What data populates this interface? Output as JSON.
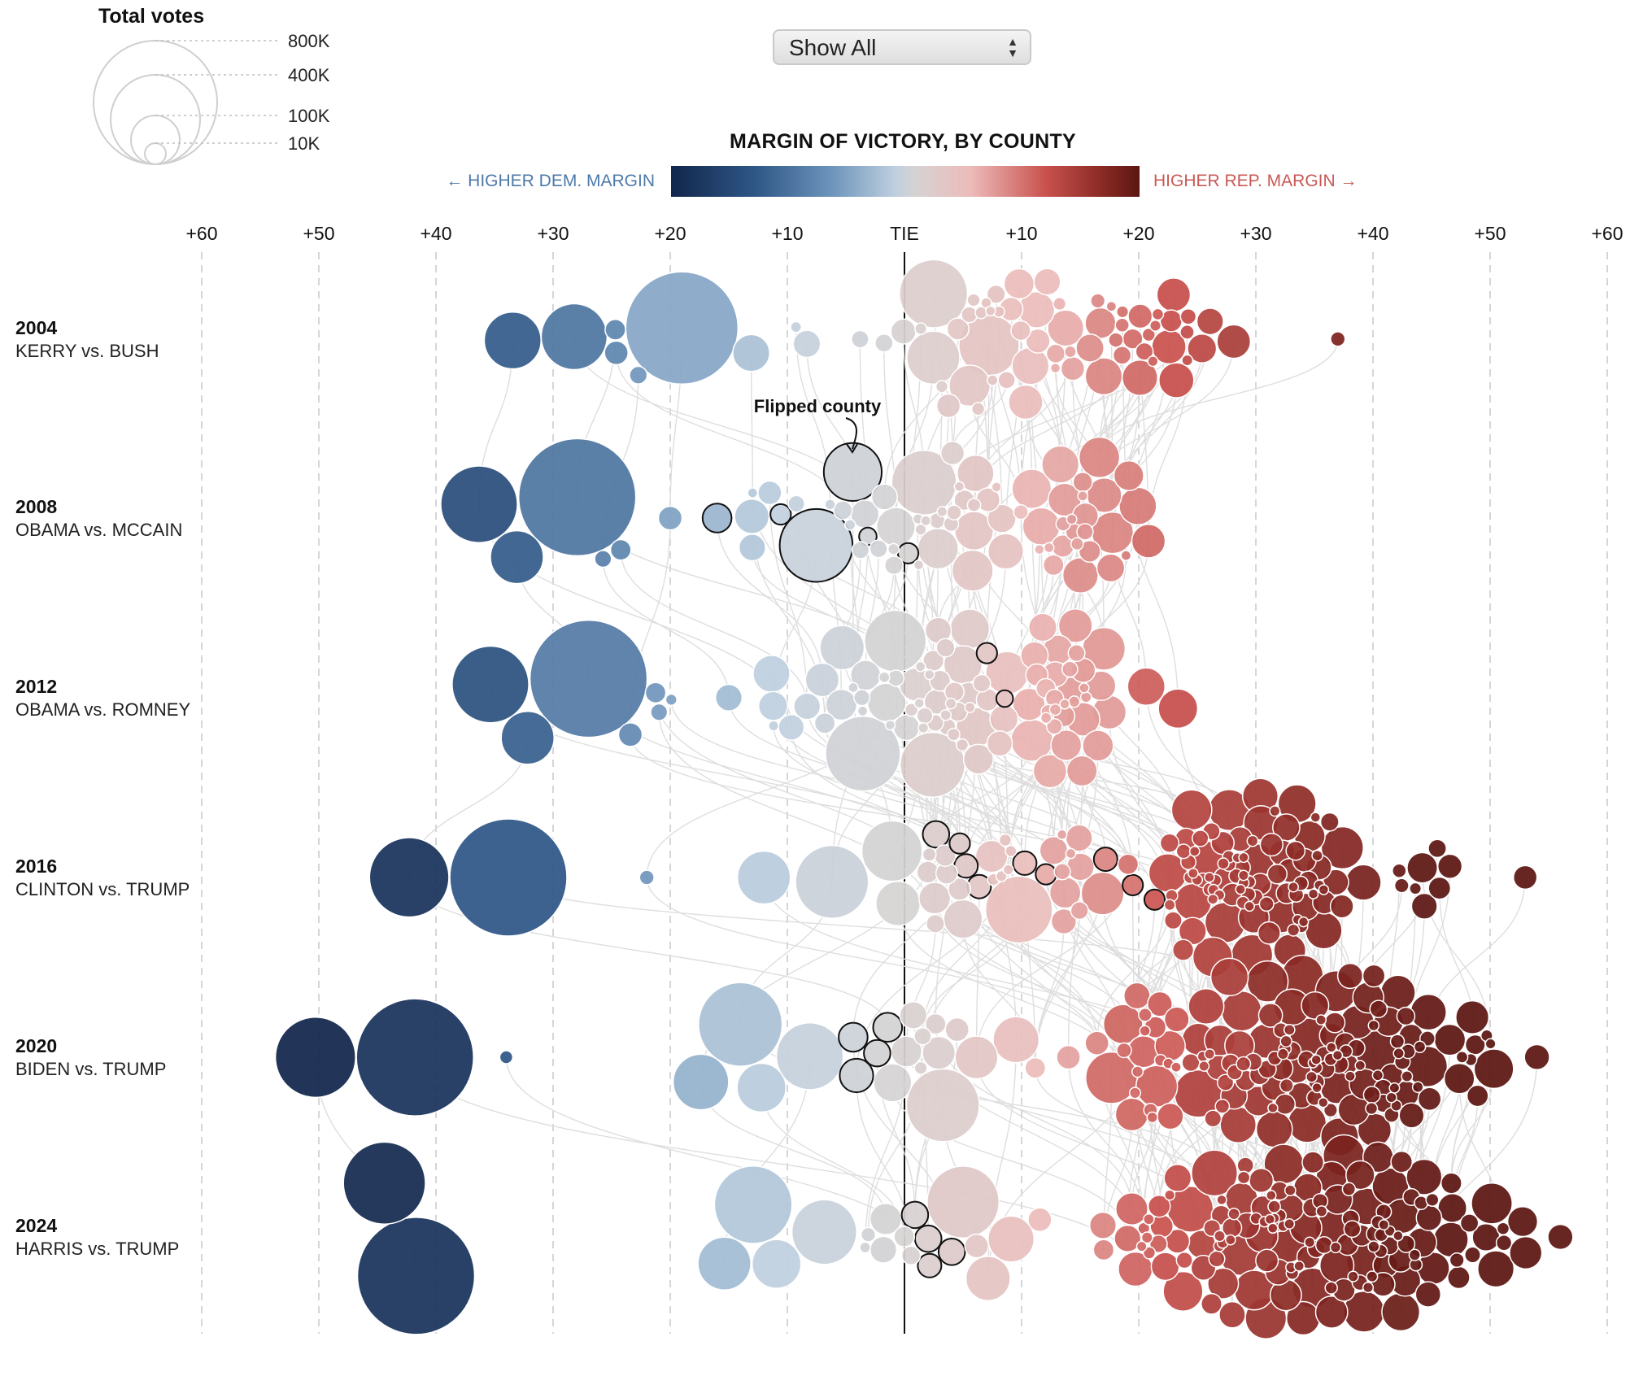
{
  "size_legend": {
    "title": "Total votes",
    "items": [
      {
        "label": "800K",
        "votes": 800000
      },
      {
        "label": "400K",
        "votes": 400000
      },
      {
        "label": "100K",
        "votes": 100000
      },
      {
        "label": "10K",
        "votes": 10000
      }
    ]
  },
  "filter": {
    "selected": "Show All"
  },
  "color_scale": {
    "title": "MARGIN OF VICTORY, BY COUNTY",
    "dem_label": "← HIGHER DEM. MARGIN",
    "rep_label": "HIGHER REP. MARGIN →",
    "colors": [
      "#11264b",
      "#2f5787",
      "#6c93ba",
      "#bfd0df",
      "#d6d3d3",
      "#ecbbb9",
      "#c9514d",
      "#8a2a25",
      "#5c1612"
    ]
  },
  "annotation": "Flipped county",
  "chart_data": {
    "type": "scatter",
    "title": "MARGIN OF VICTORY, BY COUNTY",
    "x_ticks": [
      "+60",
      "+50",
      "+40",
      "+30",
      "+20",
      "+10",
      "TIE",
      "+10",
      "+20",
      "+30",
      "+40",
      "+50",
      "+60"
    ],
    "xlim": [
      -60,
      60
    ],
    "x_unit": "margin points (negative = Democratic margin)",
    "rows": [
      {
        "year": "2004",
        "matchup": "KERRY vs. BUSH",
        "big": [
          [
            -33,
            230,
            0
          ],
          [
            -28,
            310,
            0
          ],
          [
            -19,
            900,
            0
          ],
          [
            3,
            330,
            0
          ],
          [
            7,
            260,
            0
          ],
          [
            3,
            200,
            0
          ],
          [
            6,
            120,
            0
          ]
        ],
        "med": [
          [
            -25,
            30,
            0
          ],
          [
            -25,
            40,
            0
          ],
          [
            -22,
            22,
            0
          ],
          [
            20,
            90,
            0
          ],
          [
            23,
            80,
            0
          ],
          [
            25,
            60,
            0
          ],
          [
            28,
            80,
            0
          ],
          [
            26,
            50,
            0
          ],
          [
            16,
            55,
            0
          ],
          [
            11,
            50,
            0
          ],
          [
            14,
            40,
            0
          ],
          [
            10,
            40,
            0
          ],
          [
            5,
            40,
            0
          ]
        ],
        "dist": [
          [
            -14,
            3,
            4
          ],
          [
            -6,
            12,
            9
          ],
          [
            1,
            14,
            15
          ],
          [
            16,
            24,
            21
          ],
          [
            32,
            8,
            2
          ]
        ],
        "outliers": [
          [
            37,
            15,
            0
          ]
        ]
      },
      {
        "year": "2008",
        "matchup": "OBAMA vs. MCCAIN",
        "big": [
          [
            -36,
            420,
            0
          ],
          [
            -28,
            1000,
            0
          ],
          [
            -33,
            200,
            0
          ],
          [
            -7,
            380,
            1
          ],
          [
            -4,
            240,
            1
          ],
          [
            2,
            300,
            0
          ],
          [
            6,
            120,
            0
          ],
          [
            12,
            110,
            0
          ],
          [
            16,
            90,
            0
          ],
          [
            20,
            80,
            0
          ],
          [
            18,
            100,
            0
          ]
        ],
        "med": [
          [
            -26,
            20,
            0
          ],
          [
            -25,
            30,
            0
          ],
          [
            -16,
            60,
            1
          ],
          [
            -20,
            40,
            0
          ],
          [
            -12,
            40,
            0
          ],
          [
            -13,
            50,
            0
          ],
          [
            -10,
            30,
            1
          ],
          [
            0,
            30,
            1
          ],
          [
            -3,
            22,
            1
          ]
        ],
        "dist": [
          [
            -13,
            3,
            6
          ],
          [
            -4,
            8,
            11
          ],
          [
            1,
            10,
            12
          ],
          [
            12,
            18,
            22
          ],
          [
            -20,
            4,
            2
          ],
          [
            -21,
            3,
            2
          ]
        ],
        "outliers": []
      },
      {
        "year": "2012",
        "matchup": "OBAMA vs. ROMNEY",
        "big": [
          [
            -35,
            420,
            0
          ],
          [
            -27,
            1000,
            0
          ],
          [
            -32,
            200,
            0
          ],
          [
            -3,
            400,
            0
          ],
          [
            3,
            300,
            0
          ],
          [
            -1,
            270,
            0
          ],
          [
            -5,
            140,
            0
          ],
          [
            9,
            130,
            0
          ],
          [
            15,
            130,
            0
          ],
          [
            23,
            110,
            0
          ],
          [
            21,
            100,
            0
          ]
        ],
        "med": [
          [
            -24,
            40,
            0
          ],
          [
            -21,
            20,
            0
          ],
          [
            -22,
            30,
            0
          ],
          [
            -20,
            9,
            0
          ],
          [
            -11,
            60,
            0
          ],
          [
            -8,
            50,
            0
          ],
          [
            -15,
            50,
            0
          ],
          [
            -6,
            30,
            0
          ],
          [
            6,
            30,
            1
          ],
          [
            8,
            20,
            1
          ]
        ],
        "dist": [
          [
            -13,
            3,
            8
          ],
          [
            -4,
            6,
            12
          ],
          [
            1,
            8,
            14
          ],
          [
            12,
            15,
            30
          ],
          [
            3,
            6,
            10
          ]
        ],
        "outliers": []
      },
      {
        "year": "2016",
        "matchup": "CLINTON vs. TRUMP",
        "big": [
          [
            -42,
            450,
            0
          ],
          [
            -34,
            1100,
            0
          ],
          [
            -12,
            200,
            0
          ],
          [
            -6,
            380,
            0
          ],
          [
            -1,
            260,
            0
          ],
          [
            0,
            140,
            0
          ],
          [
            10,
            320,
            0
          ],
          [
            16,
            130,
            0
          ],
          [
            28,
            120,
            0
          ],
          [
            38,
            90,
            0
          ],
          [
            30,
            90,
            0
          ]
        ],
        "med": [
          [
            -22,
            15,
            0
          ],
          [
            3,
            50,
            1
          ],
          [
            5,
            40,
            1
          ],
          [
            6,
            40,
            1
          ],
          [
            4,
            30,
            1
          ],
          [
            10,
            40,
            1
          ],
          [
            13,
            30,
            1
          ],
          [
            17,
            40,
            1
          ],
          [
            19,
            30,
            1
          ],
          [
            14,
            50,
            0
          ],
          [
            19,
            30,
            0
          ],
          [
            22,
            30,
            1
          ]
        ],
        "dist": [
          [
            3,
            4,
            8
          ],
          [
            8,
            8,
            6
          ],
          [
            14,
            14,
            8
          ],
          [
            24,
            36,
            90
          ],
          [
            42,
            46,
            8
          ]
        ],
        "outliers": [
          [
            53,
            40,
            0
          ]
        ]
      },
      {
        "year": "2020",
        "matchup": "BIDEN vs. TRUMP",
        "big": [
          [
            -42,
            1100,
            0
          ],
          [
            -50,
            460,
            0
          ],
          [
            -14,
            500,
            0
          ],
          [
            -8,
            320,
            0
          ],
          [
            -17,
            220,
            0
          ],
          [
            -12,
            170,
            0
          ],
          [
            3,
            380,
            0
          ],
          [
            6,
            130,
            0
          ],
          [
            9,
            150,
            0
          ],
          [
            20,
            190,
            0
          ],
          [
            27,
            160,
            0
          ],
          [
            33,
            120,
            0
          ],
          [
            28,
            100,
            0
          ]
        ],
        "med": [
          [
            -34,
            12,
            0
          ],
          [
            -4,
            80,
            1
          ],
          [
            -5,
            60,
            1
          ],
          [
            -1,
            60,
            1
          ],
          [
            -2,
            50,
            1
          ],
          [
            4,
            40,
            0
          ],
          [
            2,
            30,
            0
          ],
          [
            14,
            40,
            0
          ],
          [
            17,
            40,
            0
          ],
          [
            11,
            30,
            0
          ]
        ],
        "dist": [
          [
            -3,
            3,
            6
          ],
          [
            20,
            22,
            20
          ],
          [
            26,
            44,
            110
          ],
          [
            46,
            50,
            10
          ]
        ],
        "outliers": [
          [
            54,
            45,
            0
          ]
        ]
      },
      {
        "year": "2024",
        "matchup": "HARRIS vs. TRUMP",
        "big": [
          [
            -42,
            1100,
            0
          ],
          [
            -44,
            480,
            0
          ],
          [
            -13,
            430,
            0
          ],
          [
            -7,
            300,
            0
          ],
          [
            -15,
            200,
            0
          ],
          [
            -11,
            170,
            0
          ],
          [
            5,
            370,
            0
          ],
          [
            9,
            150,
            0
          ],
          [
            7,
            140,
            0
          ],
          [
            24,
            150,
            0
          ],
          [
            27,
            150,
            0
          ],
          [
            31,
            120,
            0
          ]
        ],
        "med": [
          [
            1,
            50,
            1
          ],
          [
            2,
            40,
            1
          ],
          [
            4,
            50,
            1
          ],
          [
            2,
            50,
            1
          ],
          [
            -2,
            50,
            0
          ],
          [
            0,
            30,
            0
          ],
          [
            6,
            40,
            0
          ],
          [
            11,
            40,
            0
          ],
          [
            17,
            50,
            0
          ],
          [
            17,
            30,
            0
          ],
          [
            20,
            50,
            0
          ]
        ],
        "dist": [
          [
            -4,
            3,
            4
          ],
          [
            20,
            24,
            16
          ],
          [
            26,
            44,
            110
          ],
          [
            46,
            52,
            14
          ]
        ],
        "outliers": [
          [
            56,
            45,
            0
          ]
        ]
      }
    ]
  }
}
